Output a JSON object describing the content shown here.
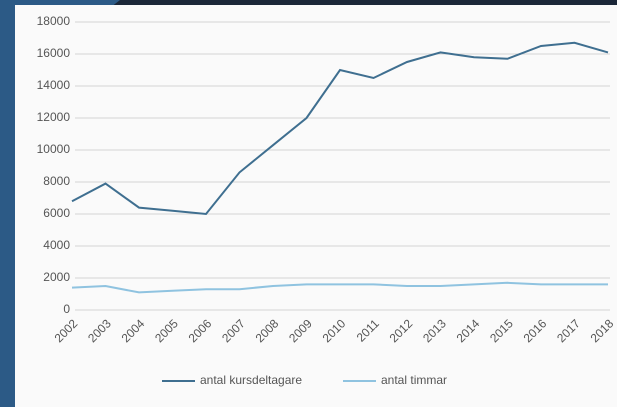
{
  "chart_data": {
    "type": "line",
    "categories": [
      "2002",
      "2003",
      "2004",
      "2005",
      "2006",
      "2007",
      "2008",
      "2009",
      "2010",
      "2011",
      "2012",
      "2013",
      "2014",
      "2015",
      "2016",
      "2017",
      "2018"
    ],
    "series": [
      {
        "name": "antal kursdeltagare",
        "color": "#3f6f90",
        "values": [
          6800,
          7900,
          6400,
          6200,
          6000,
          8600,
          10300,
          12000,
          15000,
          14500,
          15500,
          16100,
          15800,
          15700,
          16500,
          16700,
          16100
        ]
      },
      {
        "name": "antal timmar",
        "color": "#8fc3e0",
        "values": [
          1400,
          1500,
          1100,
          1200,
          1300,
          1300,
          1500,
          1600,
          1600,
          1600,
          1500,
          1500,
          1600,
          1700,
          1600,
          1600,
          1600
        ]
      }
    ],
    "ylim": [
      0,
      18000
    ],
    "yticks": [
      0,
      2000,
      4000,
      6000,
      8000,
      10000,
      12000,
      14000,
      16000,
      18000
    ],
    "grid": true
  }
}
